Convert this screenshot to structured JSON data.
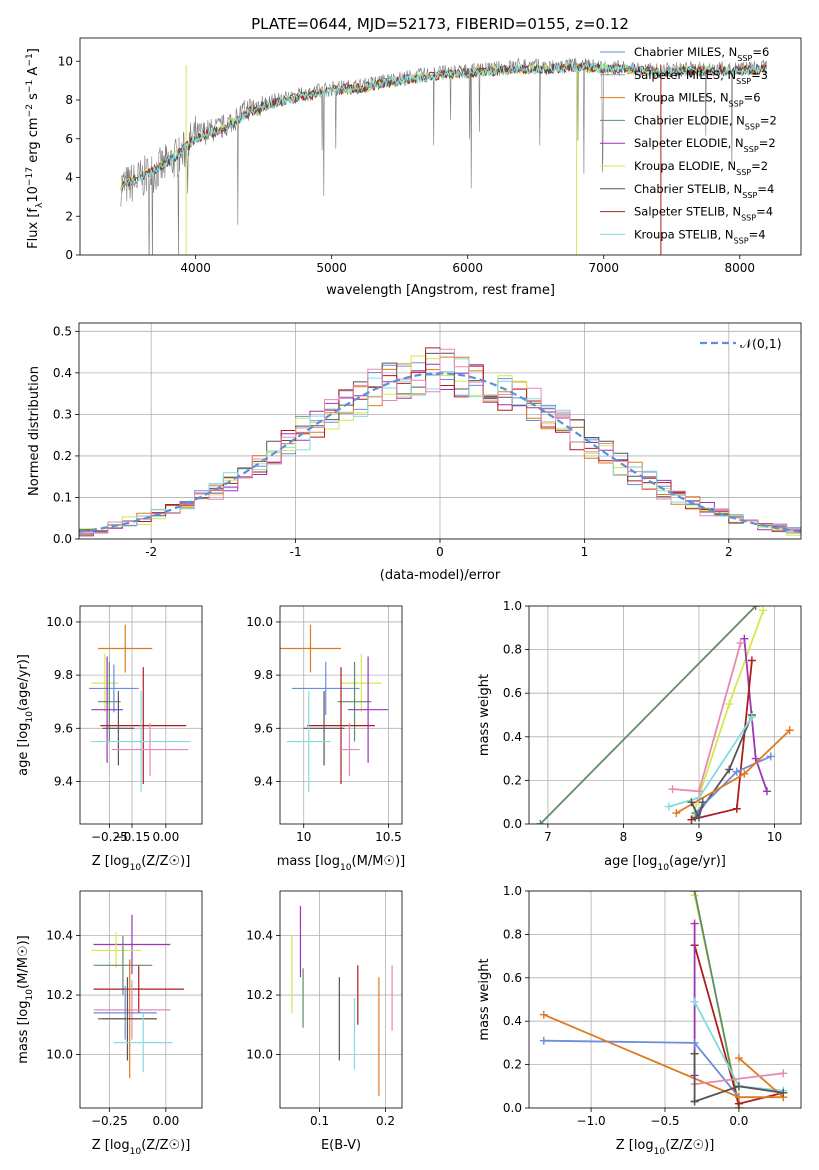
{
  "figure": {
    "title": "PLATE=0644, MJD=52173, FIBERID=0155, z=0.12",
    "colors": {
      "chabrier_miles": "#6b8dde",
      "salpeter_miles": "#8c9ca8",
      "kroupa_miles": "#e07a1f",
      "chabrier_elodie": "#5f8d6b",
      "salpeter_elodie": "#9c35b8",
      "kroupa_elodie": "#d4ea4a",
      "chabrier_stelib": "#555555",
      "salpeter_stelib": "#b01c1c",
      "kroupa_stelib": "#86dbe0",
      "pink": "#e68ab3",
      "gauss": "#5b8fd6"
    }
  },
  "chart_data": [
    {
      "id": "spectrum",
      "type": "line",
      "xlabel": "wavelength [Angstrom, rest frame]",
      "ylabel": "Flux [f",
      "xlim": [
        3150,
        8450
      ],
      "ylim": [
        0,
        11.2
      ],
      "xticks": [
        4000,
        5000,
        6000,
        7000,
        8000
      ],
      "yticks": [
        0,
        2,
        4,
        6,
        8,
        10
      ],
      "grid": false,
      "legend_position": "upper-right",
      "legend": [
        "Chabrier MILES, N",
        "Salpeter MILES, N",
        "Kroupa MILES, N",
        "Chabrier ELODIE, N",
        "Salpeter ELODIE, N",
        "Kroupa ELODIE, N",
        "Chabrier STELIB, N",
        "Salpeter STELIB, N",
        "Kroupa STELIB, N"
      ],
      "legend_nssp": [
        "6",
        "3",
        "6",
        "2",
        "2",
        "2",
        "4",
        "4",
        "4"
      ],
      "ssp_sub": "SSP",
      "continuum_x": [
        3500,
        3700,
        3900,
        4000,
        4200,
        4400,
        4600,
        4800,
        5000,
        5200,
        5400,
        5600,
        5800,
        6000,
        6200,
        6400,
        6600,
        6800,
        7000,
        7200,
        7400,
        7600,
        7800,
        8000,
        8200
      ],
      "continuum_y": [
        3.6,
        4.3,
        5.2,
        6.2,
        6.6,
        7.6,
        8.0,
        8.3,
        8.6,
        8.7,
        9.0,
        9.2,
        9.4,
        9.5,
        9.6,
        9.8,
        9.7,
        9.8,
        9.7,
        9.6,
        9.5,
        9.6,
        9.6,
        9.6,
        9.7
      ],
      "model_x": [
        3450,
        3600,
        3800,
        4000,
        4200,
        4400,
        4600,
        4800,
        5000,
        5200,
        5400,
        5600,
        5800,
        6000,
        6200,
        6400,
        6600,
        6800,
        7000,
        7200,
        7400,
        7600,
        7800,
        8000,
        8200
      ],
      "model_y": [
        3.6,
        4.0,
        4.8,
        6.0,
        6.5,
        7.4,
        7.9,
        8.2,
        8.5,
        8.6,
        8.9,
        9.1,
        9.3,
        9.4,
        9.5,
        9.6,
        9.6,
        9.7,
        9.6,
        9.6,
        9.4,
        9.5,
        9.5,
        9.5,
        9.6
      ]
    },
    {
      "id": "residuals",
      "type": "histogram",
      "xlabel": "(data-model)/error",
      "ylabel": "Normed distribution",
      "xlim": [
        -2.5,
        2.5
      ],
      "ylim": [
        0,
        0.52
      ],
      "xticks": [
        -2,
        -1,
        0,
        1,
        2
      ],
      "yticks": [
        0.0,
        0.1,
        0.2,
        0.3,
        0.4,
        0.5
      ],
      "grid": true,
      "legend": [
        "𝒩(0,1)"
      ],
      "legend_position": "upper-right",
      "bin_width": 0.1,
      "gaussian": {
        "mean": 0,
        "sigma": 1
      }
    },
    {
      "id": "age_vs_z",
      "type": "errorbar",
      "xlabel": "Z [log",
      "ylabel": "age  [log",
      "xlim": [
        -0.38,
        0.16
      ],
      "ylim": [
        9.24,
        10.06
      ],
      "xticks": [
        -0.25,
        -0.15,
        0.0
      ],
      "xticklabels": [
        "−0.25",
        "−0.15",
        "0.00"
      ],
      "yticks": [
        9.4,
        9.6,
        9.8,
        10.0
      ],
      "grid": true,
      "points": [
        {
          "c": "kroupa_miles",
          "x": -0.18,
          "xe": 0.12,
          "y": 9.9,
          "ye": 0.09
        },
        {
          "c": "kroupa_elodie",
          "x": -0.27,
          "xe": 0.06,
          "y": 9.77,
          "ye": 0.11
        },
        {
          "c": "chabrier_miles",
          "x": -0.23,
          "xe": 0.11,
          "y": 9.75,
          "ye": 0.09
        },
        {
          "c": "chabrier_elodie",
          "x": -0.25,
          "xe": 0.05,
          "y": 9.7,
          "ye": 0.15
        },
        {
          "c": "salpeter_elodie",
          "x": -0.26,
          "xe": 0.07,
          "y": 9.67,
          "ye": 0.2
        },
        {
          "c": "salpeter_stelib",
          "x": -0.1,
          "xe": 0.19,
          "y": 9.61,
          "ye": 0.22
        },
        {
          "c": "chabrier_stelib",
          "x": -0.21,
          "xe": 0.07,
          "y": 9.6,
          "ye": 0.14
        },
        {
          "c": "kroupa_stelib",
          "x": -0.11,
          "xe": 0.22,
          "y": 9.55,
          "ye": 0.19
        },
        {
          "c": "pink",
          "x": -0.07,
          "xe": 0.17,
          "y": 9.52,
          "ye": 0.1
        }
      ]
    },
    {
      "id": "age_vs_mass",
      "type": "errorbar",
      "xlabel": "mass [log",
      "ylabel": "",
      "xlim": [
        9.86,
        10.58
      ],
      "ylim": [
        9.24,
        10.06
      ],
      "xticks": [
        10.0,
        10.5
      ],
      "yticks": [
        9.4,
        9.6,
        9.8,
        10.0
      ],
      "grid": true,
      "points": [
        {
          "c": "kroupa_miles",
          "x": 10.04,
          "xe": 0.18,
          "y": 9.9,
          "ye": 0.09
        },
        {
          "c": "kroupa_elodie",
          "x": 10.34,
          "xe": 0.12,
          "y": 9.77,
          "ye": 0.11
        },
        {
          "c": "chabrier_miles",
          "x": 10.13,
          "xe": 0.2,
          "y": 9.75,
          "ye": 0.1
        },
        {
          "c": "chabrier_elodie",
          "x": 10.3,
          "xe": 0.1,
          "y": 9.7,
          "ye": 0.15
        },
        {
          "c": "salpeter_elodie",
          "x": 10.38,
          "xe": 0.12,
          "y": 9.67,
          "ye": 0.2
        },
        {
          "c": "salpeter_stelib",
          "x": 10.22,
          "xe": 0.2,
          "y": 9.61,
          "ye": 0.22
        },
        {
          "c": "chabrier_stelib",
          "x": 10.12,
          "xe": 0.12,
          "y": 9.6,
          "ye": 0.14
        },
        {
          "c": "kroupa_stelib",
          "x": 10.03,
          "xe": 0.13,
          "y": 9.55,
          "ye": 0.19
        },
        {
          "c": "pink",
          "x": 10.27,
          "xe": 0.06,
          "y": 9.52,
          "ye": 0.1
        }
      ]
    },
    {
      "id": "weight_vs_age",
      "type": "line",
      "xlabel": "age  [log",
      "ylabel": "mass weight",
      "xlim": [
        6.75,
        10.35
      ],
      "ylim": [
        0,
        1.0
      ],
      "xticks": [
        7,
        8,
        9,
        10
      ],
      "yticks": [
        0.0,
        0.2,
        0.4,
        0.6,
        0.8,
        1.0
      ],
      "grid": true,
      "series": [
        {
          "c": "chabrier_elodie",
          "x": [
            6.9,
            9.75
          ],
          "y": [
            0.0,
            1.0
          ]
        },
        {
          "c": "kroupa_elodie",
          "x": [
            8.9,
            9.4,
            9.85
          ],
          "y": [
            0.02,
            0.55,
            0.98
          ]
        },
        {
          "c": "salpeter_elodie",
          "x": [
            9.6,
            9.75,
            9.9
          ],
          "y": [
            0.85,
            0.3,
            0.15
          ]
        },
        {
          "c": "salpeter_stelib",
          "x": [
            8.9,
            9.5,
            9.7
          ],
          "y": [
            0.02,
            0.07,
            0.75
          ]
        },
        {
          "c": "chabrier_stelib",
          "x": [
            8.95,
            9.4,
            9.7
          ],
          "y": [
            0.03,
            0.25,
            0.5
          ]
        },
        {
          "c": "kroupa_stelib",
          "x": [
            8.6,
            9.0,
            9.7
          ],
          "y": [
            0.08,
            0.12,
            0.49
          ]
        },
        {
          "c": "chabrier_miles",
          "x": [
            8.95,
            9.5,
            9.95
          ],
          "y": [
            0.05,
            0.24,
            0.31
          ]
        },
        {
          "c": "kroupa_miles",
          "x": [
            8.7,
            9.6,
            10.2
          ],
          "y": [
            0.05,
            0.23,
            0.43
          ]
        },
        {
          "c": "pink",
          "x": [
            8.65,
            9.0,
            9.55
          ],
          "y": [
            0.16,
            0.15,
            0.83
          ]
        },
        {
          "c": "chabrier_stelib",
          "x": [
            8.9,
            9.0,
            9.05
          ],
          "y": [
            0.1,
            0.03,
            0.1
          ]
        }
      ]
    },
    {
      "id": "mass_vs_z",
      "type": "errorbar",
      "xlabel": "Z [log",
      "ylabel": "mass [log",
      "xlim": [
        -0.38,
        0.16
      ],
      "ylim": [
        9.82,
        10.55
      ],
      "xticks": [
        -0.25,
        0.0
      ],
      "xticklabels": [
        "−0.25",
        "0.00"
      ],
      "yticks": [
        10.0,
        10.2,
        10.4
      ],
      "grid": true,
      "points": [
        {
          "c": "salpeter_elodie",
          "x": -0.15,
          "xe": 0.17,
          "y": 10.37,
          "ye": 0.1
        },
        {
          "c": "kroupa_elodie",
          "x": -0.22,
          "xe": 0.11,
          "y": 10.35,
          "ye": 0.06
        },
        {
          "c": "chabrier_elodie",
          "x": -0.19,
          "xe": 0.13,
          "y": 10.3,
          "ye": 0.1
        },
        {
          "c": "salpeter_stelib",
          "x": -0.12,
          "xe": 0.2,
          "y": 10.22,
          "ye": 0.08
        },
        {
          "c": "pink",
          "x": -0.15,
          "xe": 0.17,
          "y": 10.15,
          "ye": 0.1
        },
        {
          "c": "chabrier_miles",
          "x": -0.18,
          "xe": 0.14,
          "y": 10.14,
          "ye": 0.09
        },
        {
          "c": "kroupa_miles",
          "x": -0.16,
          "xe": 0.12,
          "y": 10.12,
          "ye": 0.2
        },
        {
          "c": "chabrier_stelib",
          "x": -0.17,
          "xe": 0.13,
          "y": 10.12,
          "ye": 0.14
        },
        {
          "c": "kroupa_stelib",
          "x": -0.1,
          "xe": 0.13,
          "y": 10.04,
          "ye": 0.1
        }
      ]
    },
    {
      "id": "mass_vs_ebv",
      "type": "errorbar",
      "xlabel": "E(B-V)",
      "ylabel": "",
      "xlim": [
        0.04,
        0.225
      ],
      "ylim": [
        9.82,
        10.55
      ],
      "xticks": [
        0.1,
        0.2
      ],
      "yticks": [
        10.0,
        10.2,
        10.4
      ],
      "grid": true,
      "points": [
        {
          "c": "kroupa_elodie",
          "x": 0.058,
          "y": 10.27,
          "ye": 0.13
        },
        {
          "c": "salpeter_elodie",
          "x": 0.071,
          "y": 10.38,
          "ye": 0.12
        },
        {
          "c": "chabrier_elodie",
          "x": 0.075,
          "y": 10.19,
          "ye": 0.1
        },
        {
          "c": "chabrier_stelib",
          "x": 0.13,
          "y": 10.12,
          "ye": 0.14
        },
        {
          "c": "kroupa_stelib",
          "x": 0.153,
          "y": 10.07,
          "ye": 0.12
        },
        {
          "c": "salpeter_stelib",
          "x": 0.158,
          "y": 10.2,
          "ye": 0.1
        },
        {
          "c": "kroupa_miles",
          "x": 0.19,
          "y": 10.06,
          "ye": 0.2
        },
        {
          "c": "pink",
          "x": 0.21,
          "y": 10.19,
          "ye": 0.11
        }
      ]
    },
    {
      "id": "weight_vs_z",
      "type": "line",
      "xlabel": "Z [log",
      "ylabel": "mass weight",
      "xlim": [
        -1.42,
        0.42
      ],
      "ylim": [
        0,
        1.0
      ],
      "xticks": [
        -1.0,
        -0.5,
        0.0
      ],
      "xticklabels": [
        "−1.0",
        "−0.5",
        "0.0"
      ],
      "yticks": [
        0.0,
        0.2,
        0.4,
        0.6,
        0.8,
        1.0
      ],
      "grid": true,
      "series": [
        {
          "c": "kroupa_elodie",
          "x": [
            -0.3,
            0.0
          ],
          "y": [
            0.98,
            0.02
          ]
        },
        {
          "c": "chabrier_elodie",
          "x": [
            -0.3,
            0.0
          ],
          "y": [
            1.0,
            0.0
          ]
        },
        {
          "c": "salpeter_stelib",
          "x": [
            -0.3,
            0.0,
            0.3
          ],
          "y": [
            0.75,
            0.02,
            0.07
          ]
        },
        {
          "c": "salpeter_elodie",
          "x": [
            -0.3,
            -0.3
          ],
          "y": [
            0.15,
            0.85
          ]
        },
        {
          "c": "kroupa_stelib",
          "x": [
            -0.3,
            0.0,
            0.3
          ],
          "y": [
            0.49,
            0.1,
            0.08
          ]
        },
        {
          "c": "chabrier_miles",
          "x": [
            -1.32,
            -0.3,
            0.0
          ],
          "y": [
            0.31,
            0.3,
            0.05
          ]
        },
        {
          "c": "kroupa_miles",
          "x": [
            -1.32,
            0.0,
            0.3
          ],
          "y": [
            0.43,
            0.05,
            0.05
          ]
        },
        {
          "c": "kroupa_miles",
          "x": [
            0.0,
            0.3
          ],
          "y": [
            0.23,
            0.05
          ]
        },
        {
          "c": "pink",
          "x": [
            -0.3,
            0.3
          ],
          "y": [
            0.11,
            0.16
          ]
        },
        {
          "c": "chabrier_stelib",
          "x": [
            -0.3,
            0.0,
            0.3
          ],
          "y": [
            0.03,
            0.1,
            0.07
          ]
        },
        {
          "c": "chabrier_stelib",
          "x": [
            -0.3,
            -0.3
          ],
          "y": [
            0.03,
            0.25
          ]
        }
      ]
    }
  ]
}
